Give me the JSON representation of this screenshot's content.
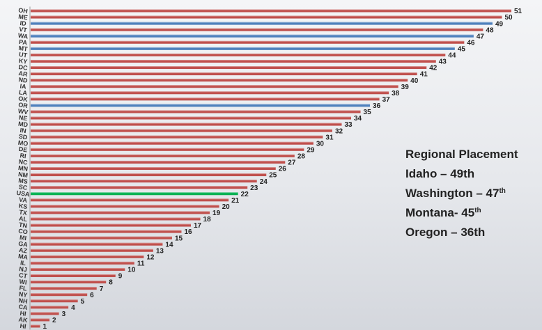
{
  "chart_data": {
    "type": "bar",
    "orientation": "horizontal",
    "categories": [
      "OH",
      "ME",
      "ID",
      "VT",
      "WA",
      "PA",
      "MT",
      "UT",
      "KY",
      "DC",
      "AR",
      "ND",
      "IA",
      "LA",
      "OK",
      "OR",
      "WV",
      "NE",
      "MD",
      "IN",
      "SD",
      "MO",
      "DE",
      "RI",
      "NC",
      "MN",
      "NM",
      "MS",
      "SC",
      "USA",
      "VA",
      "KS",
      "TX",
      "AL",
      "TN",
      "CO",
      "MI",
      "GA",
      "AZ",
      "MA",
      "IL",
      "NJ",
      "CT",
      "WI",
      "FL",
      "NY",
      "NH",
      "CA",
      "HI",
      "AK",
      "HI"
    ],
    "values": [
      51,
      50,
      49,
      48,
      47,
      46,
      45,
      44,
      43,
      42,
      41,
      40,
      39,
      38,
      37,
      36,
      35,
      34,
      33,
      32,
      31,
      30,
      29,
      28,
      27,
      26,
      25,
      24,
      23,
      22,
      21,
      20,
      19,
      18,
      17,
      16,
      15,
      14,
      13,
      12,
      11,
      10,
      9,
      8,
      7,
      6,
      5,
      4,
      3,
      2,
      1
    ],
    "bar_colors": {
      "default": "#c0504d",
      "regional": "#4f81bd",
      "usa": "#00b050"
    },
    "highlight": {
      "ID": "regional",
      "WA": "regional",
      "MT": "regional",
      "OR": "regional",
      "USA": "usa"
    },
    "grid": false,
    "legend": "none"
  },
  "regional": {
    "title": "Regional Placement",
    "items": [
      {
        "text": "Idaho – 49th",
        "sup": ""
      },
      {
        "text": "Washington – 47",
        "sup": "th"
      },
      {
        "text": "Montana- 45",
        "sup": "th"
      },
      {
        "text": "Oregon – 36th",
        "sup": ""
      }
    ]
  }
}
